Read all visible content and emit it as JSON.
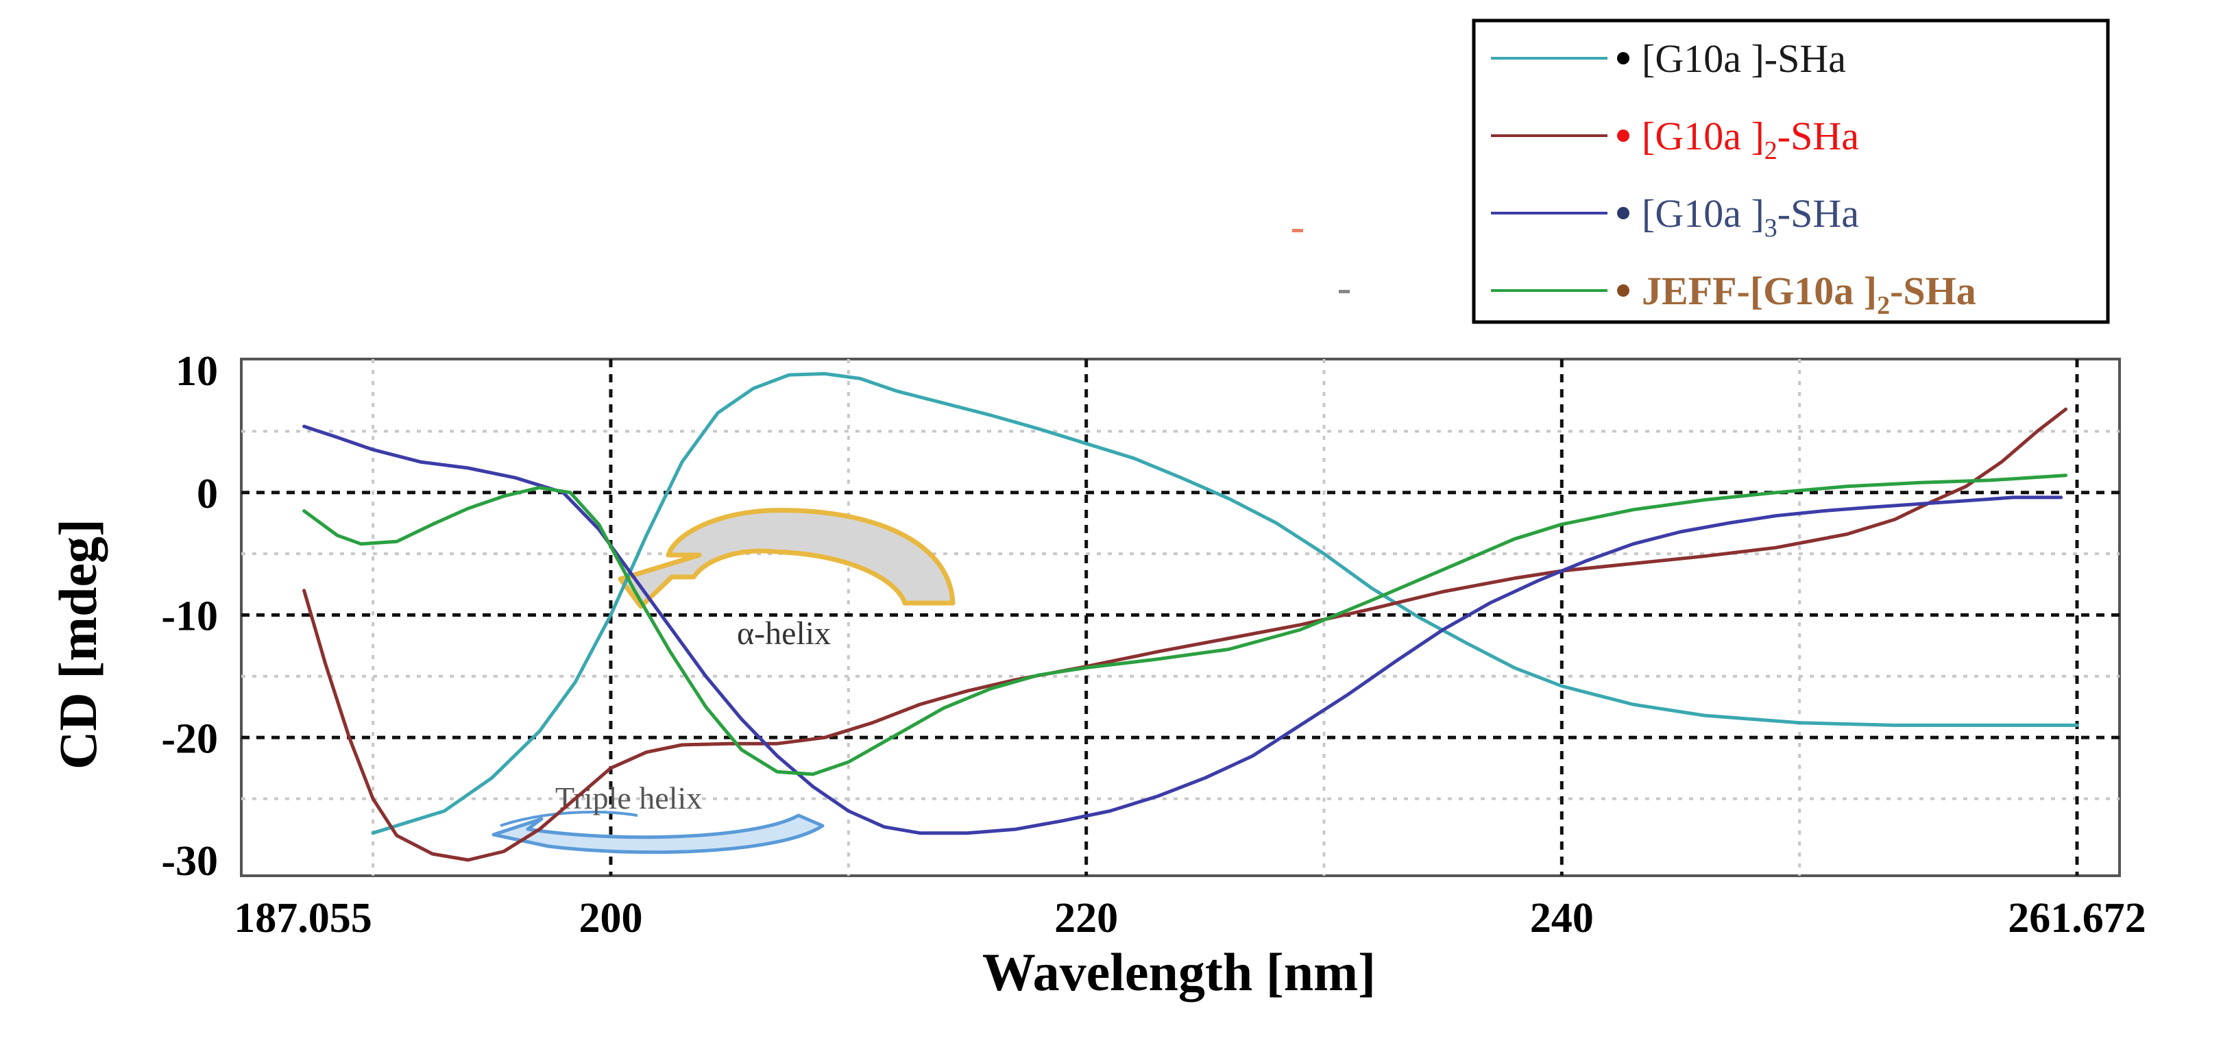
{
  "chart_data": {
    "type": "line",
    "xlabel": "Wavelength [nm]",
    "ylabel": "CD [mdeg]",
    "xlim": [
      187.055,
      261.672
    ],
    "ylim": [
      -30,
      10
    ],
    "x_ticks": [
      {
        "value": 187.055,
        "label": "187.055"
      },
      {
        "value": 200,
        "label": "200"
      },
      {
        "value": 220,
        "label": "220"
      },
      {
        "value": 240,
        "label": "240"
      },
      {
        "value": 261.672,
        "label": "261.672"
      }
    ],
    "y_ticks": [
      {
        "value": 10,
        "label": "10"
      },
      {
        "value": 0,
        "label": "0"
      },
      {
        "value": -10,
        "label": "-10"
      },
      {
        "value": -20,
        "label": "-20"
      },
      {
        "value": -30,
        "label": "-30"
      }
    ],
    "grid": true,
    "legend_position": "top-right",
    "series": [
      {
        "name": "[G10a ]-SHa",
        "name_parts": [
          "[G10a ]-SHa"
        ],
        "line_color": "#3aa8b0",
        "dot_color": "#000000",
        "text_color": "#1a1a1a",
        "points": [
          [
            190,
            -27.8
          ],
          [
            193,
            -26
          ],
          [
            195,
            -23.3
          ],
          [
            197,
            -19.5
          ],
          [
            198.5,
            -15.5
          ],
          [
            200,
            -10
          ],
          [
            201.5,
            -3.5
          ],
          [
            203,
            2.5
          ],
          [
            204.5,
            6.5
          ],
          [
            206,
            8.5
          ],
          [
            207.5,
            9.6
          ],
          [
            209,
            9.7
          ],
          [
            210.5,
            9.3
          ],
          [
            212,
            8.3
          ],
          [
            214,
            7.3
          ],
          [
            216,
            6.3
          ],
          [
            218,
            5.2
          ],
          [
            220,
            4.0
          ],
          [
            222,
            2.8
          ],
          [
            224,
            1.2
          ],
          [
            226,
            -0.5
          ],
          [
            228,
            -2.5
          ],
          [
            230,
            -5
          ],
          [
            232,
            -7.8
          ],
          [
            234,
            -10.2
          ],
          [
            236,
            -12.3
          ],
          [
            238,
            -14.3
          ],
          [
            240,
            -15.8
          ],
          [
            243,
            -17.3
          ],
          [
            246,
            -18.2
          ],
          [
            250,
            -18.8
          ],
          [
            254,
            -19.0
          ],
          [
            261.672,
            -19.0
          ]
        ]
      },
      {
        "name": "[G10a ]2-SHa",
        "name_parts": [
          "[G10a ]",
          "2",
          "-SHa"
        ],
        "line_color": "#8b3030",
        "dot_color": "#ee1111",
        "text_color": "#ee1111",
        "points": [
          [
            187.1,
            -8
          ],
          [
            188,
            -14
          ],
          [
            189,
            -20
          ],
          [
            190,
            -25
          ],
          [
            191,
            -28
          ],
          [
            192.5,
            -29.5
          ],
          [
            194,
            -30
          ],
          [
            195.5,
            -29.3
          ],
          [
            197,
            -27.5
          ],
          [
            198.5,
            -25
          ],
          [
            200,
            -22.5
          ],
          [
            201.5,
            -21.2
          ],
          [
            203,
            -20.6
          ],
          [
            205,
            -20.5
          ],
          [
            207,
            -20.5
          ],
          [
            209,
            -20
          ],
          [
            211,
            -18.8
          ],
          [
            213,
            -17.3
          ],
          [
            215,
            -16.2
          ],
          [
            217,
            -15.3
          ],
          [
            220,
            -14.2
          ],
          [
            223,
            -13
          ],
          [
            226,
            -11.9
          ],
          [
            229,
            -10.8
          ],
          [
            232,
            -9.5
          ],
          [
            235,
            -8.1
          ],
          [
            238,
            -7
          ],
          [
            240,
            -6.4
          ],
          [
            243,
            -5.8
          ],
          [
            246,
            -5.2
          ],
          [
            249,
            -4.5
          ],
          [
            252,
            -3.4
          ],
          [
            254,
            -2.2
          ],
          [
            255.5,
            -0.8
          ],
          [
            257,
            0.5
          ],
          [
            258.5,
            2.5
          ],
          [
            260,
            5
          ],
          [
            261.2,
            6.8
          ]
        ]
      },
      {
        "name": "[G10a ]3-SHa",
        "name_parts": [
          "[G10a ]",
          "3",
          "-SHa"
        ],
        "line_color": "#3c3ca8",
        "dot_color": "#2a3a6a",
        "text_color": "#3a4a7a",
        "points": [
          [
            187.1,
            5.4
          ],
          [
            188.5,
            4.5
          ],
          [
            190,
            3.5
          ],
          [
            192,
            2.5
          ],
          [
            194,
            2
          ],
          [
            196,
            1.2
          ],
          [
            198,
            0
          ],
          [
            199.5,
            -3
          ],
          [
            201,
            -7
          ],
          [
            202.5,
            -11
          ],
          [
            204,
            -15
          ],
          [
            205.5,
            -18.5
          ],
          [
            207,
            -21.5
          ],
          [
            208.5,
            -24
          ],
          [
            210,
            -26
          ],
          [
            211.5,
            -27.3
          ],
          [
            213,
            -27.8
          ],
          [
            215,
            -27.8
          ],
          [
            217,
            -27.5
          ],
          [
            219,
            -26.8
          ],
          [
            221,
            -26
          ],
          [
            223,
            -24.8
          ],
          [
            225,
            -23.3
          ],
          [
            227,
            -21.5
          ],
          [
            229,
            -19
          ],
          [
            231,
            -16.5
          ],
          [
            233,
            -13.8
          ],
          [
            235,
            -11.2
          ],
          [
            237,
            -9
          ],
          [
            239,
            -7.2
          ],
          [
            241,
            -5.6
          ],
          [
            243,
            -4.2
          ],
          [
            245,
            -3.2
          ],
          [
            247,
            -2.5
          ],
          [
            249,
            -1.9
          ],
          [
            251,
            -1.5
          ],
          [
            253,
            -1.2
          ],
          [
            256,
            -0.8
          ],
          [
            259,
            -0.4
          ],
          [
            261,
            -0.4
          ]
        ]
      },
      {
        "name": "JEFF-[G10a ]2-SHa",
        "name_parts": [
          "JEFF-[G10a ]",
          "2",
          "-SHa"
        ],
        "line_color": "#2aa040",
        "dot_color": "#8a4a20",
        "text_color": "#a0683a",
        "points": [
          [
            187.1,
            -1.5
          ],
          [
            188.5,
            -3.5
          ],
          [
            189.5,
            -4.2
          ],
          [
            191,
            -4
          ],
          [
            192.5,
            -2.6
          ],
          [
            194,
            -1.3
          ],
          [
            195.5,
            -0.3
          ],
          [
            197,
            0.4
          ],
          [
            198.3,
            0
          ],
          [
            199.5,
            -2.6
          ],
          [
            201,
            -8
          ],
          [
            202.5,
            -13
          ],
          [
            204,
            -17.5
          ],
          [
            205.5,
            -21
          ],
          [
            207,
            -22.8
          ],
          [
            208.5,
            -23
          ],
          [
            210,
            -22
          ],
          [
            212,
            -19.8
          ],
          [
            214,
            -17.6
          ],
          [
            216,
            -16
          ],
          [
            218,
            -14.9
          ],
          [
            220,
            -14.3
          ],
          [
            223,
            -13.6
          ],
          [
            226,
            -12.8
          ],
          [
            229,
            -11.2
          ],
          [
            232,
            -8.8
          ],
          [
            235,
            -6.3
          ],
          [
            238,
            -3.8
          ],
          [
            240,
            -2.6
          ],
          [
            243,
            -1.4
          ],
          [
            246,
            -0.6
          ],
          [
            249,
            0
          ],
          [
            252,
            0.5
          ],
          [
            255,
            0.8
          ],
          [
            258,
            1.0
          ],
          [
            261.2,
            1.4
          ]
        ]
      }
    ],
    "annotations": [
      {
        "name": "alpha-helix",
        "text": "α-helix",
        "arrow_color": "#e8b840"
      },
      {
        "name": "triple-helix",
        "text": "Triple helix",
        "arrow_color": "#5a9ad8"
      }
    ]
  }
}
